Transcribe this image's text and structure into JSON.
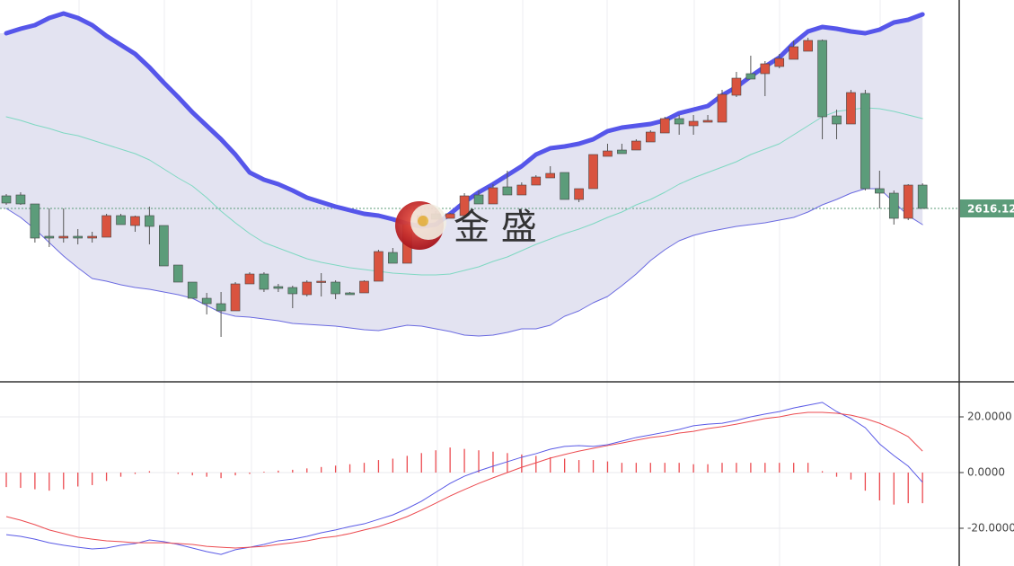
{
  "watermark": "金 盛",
  "chart_data": [
    {
      "type": "candlestick",
      "ylim": [
        2567.87,
        2674.12
      ],
      "up_color": "#d9533f",
      "down_color": "#5c9c7a",
      "band_fill": "#e3e3f1",
      "last_price": 2616.12,
      "last_price_color": "#5c9c7a",
      "open": [
        2619.62,
        2619.87,
        2617.37,
        2608.37,
        2607.87,
        2608.37,
        2607.87,
        2608.12,
        2614.12,
        2611.37,
        2614.12,
        2611.37,
        2600.37,
        2595.62,
        2591.12,
        2589.62,
        2587.62,
        2595.12,
        2597.87,
        2594.37,
        2594.12,
        2592.12,
        2595.62,
        2595.62,
        2592.62,
        2592.62,
        2595.87,
        2603.87,
        2600.87,
        2611.62,
        2614.62,
        2613.37,
        2614.12,
        2619.87,
        2617.37,
        2622.12,
        2619.87,
        2622.62,
        2624.62,
        2626.12,
        2618.62,
        2621.62,
        2630.62,
        2632.37,
        2632.37,
        2634.62,
        2637.12,
        2641.12,
        2639.12,
        2640.12,
        2640.12,
        2647.62,
        2653.62,
        2653.62,
        2655.62,
        2657.62,
        2659.87,
        2662.87,
        2641.87,
        2639.62,
        2648.12,
        2621.62,
        2620.37,
        2613.37,
        2622.62
      ],
      "high": [
        2620.12,
        2620.62,
        2617.37,
        2616.12,
        2616.12,
        2610.37,
        2609.62,
        2614.62,
        2614.62,
        2614.12,
        2616.62,
        2611.37,
        2600.37,
        2595.62,
        2592.62,
        2592.87,
        2595.62,
        2598.37,
        2598.37,
        2595.12,
        2594.62,
        2596.12,
        2598.12,
        2596.12,
        2592.87,
        2596.12,
        2604.62,
        2605.12,
        2612.12,
        2614.87,
        2615.37,
        2614.87,
        2620.37,
        2621.12,
        2622.87,
        2626.62,
        2623.37,
        2625.37,
        2627.87,
        2626.12,
        2621.62,
        2631.12,
        2634.12,
        2634.12,
        2635.37,
        2637.87,
        2641.62,
        2642.12,
        2642.12,
        2642.12,
        2649.12,
        2654.12,
        2658.62,
        2657.12,
        2659.12,
        2662.87,
        2663.62,
        2663.12,
        2643.62,
        2649.12,
        2649.12,
        2626.62,
        2621.12,
        2622.87,
        2623.12
      ],
      "low": [
        2617.12,
        2617.12,
        2606.62,
        2605.37,
        2606.62,
        2606.12,
        2606.62,
        2608.12,
        2611.62,
        2609.62,
        2606.12,
        2600.12,
        2595.62,
        2591.12,
        2586.62,
        2580.37,
        2587.62,
        2595.12,
        2592.87,
        2592.87,
        2588.37,
        2591.62,
        2591.62,
        2590.87,
        2592.12,
        2592.62,
        2595.87,
        2600.87,
        2600.87,
        2611.62,
        2613.12,
        2613.37,
        2614.12,
        2617.37,
        2617.37,
        2619.87,
        2619.87,
        2622.62,
        2624.62,
        2618.62,
        2617.87,
        2621.62,
        2630.62,
        2631.37,
        2632.37,
        2634.62,
        2637.12,
        2636.62,
        2636.62,
        2640.12,
        2640.12,
        2647.12,
        2652.12,
        2647.37,
        2655.12,
        2657.62,
        2659.87,
        2635.37,
        2635.37,
        2639.62,
        2621.12,
        2616.12,
        2611.62,
        2612.87,
        2616.12
      ],
      "close": [
        2617.62,
        2617.37,
        2607.87,
        2607.87,
        2608.37,
        2607.87,
        2608.37,
        2614.12,
        2611.62,
        2613.87,
        2611.12,
        2600.12,
        2595.62,
        2591.12,
        2589.62,
        2587.62,
        2595.12,
        2597.87,
        2593.62,
        2593.87,
        2592.37,
        2595.62,
        2595.87,
        2592.37,
        2592.12,
        2595.87,
        2604.12,
        2600.87,
        2611.62,
        2614.12,
        2613.12,
        2614.62,
        2619.62,
        2617.37,
        2621.87,
        2619.87,
        2622.62,
        2624.87,
        2625.87,
        2618.62,
        2621.62,
        2631.12,
        2632.12,
        2631.37,
        2634.87,
        2637.37,
        2641.12,
        2639.62,
        2640.37,
        2640.62,
        2647.87,
        2652.37,
        2652.12,
        2656.37,
        2657.87,
        2661.12,
        2662.87,
        2641.62,
        2639.62,
        2648.37,
        2621.62,
        2620.37,
        2613.37,
        2622.62,
        2616.12
      ],
      "overlays": [
        {
          "color": "#5656ea",
          "width": 5,
          "values": [
            2664.87,
            2666.12,
            2667.12,
            2669.12,
            2670.37,
            2669.12,
            2667.12,
            2664.12,
            2661.62,
            2659.12,
            2655.37,
            2651.12,
            2647.12,
            2642.87,
            2639.12,
            2635.37,
            2631.12,
            2626.12,
            2624.12,
            2622.87,
            2621.12,
            2619.12,
            2617.87,
            2616.62,
            2615.62,
            2614.62,
            2614.12,
            2613.12,
            2611.87,
            2611.12,
            2611.62,
            2614.62,
            2617.87,
            2620.62,
            2622.87,
            2625.37,
            2627.87,
            2631.12,
            2632.87,
            2633.37,
            2634.12,
            2635.37,
            2637.62,
            2638.62,
            2639.12,
            2639.62,
            2640.62,
            2642.62,
            2643.62,
            2644.62,
            2647.62,
            2649.87,
            2652.87,
            2655.62,
            2658.12,
            2662.12,
            2665.37,
            2666.62,
            2666.12,
            2665.37,
            2664.87,
            2665.87,
            2667.87,
            2668.62,
            2670.12
          ]
        },
        {
          "color": "#7fd8c2",
          "width": 1,
          "values": [
            2641.62,
            2640.62,
            2639.37,
            2638.37,
            2637.12,
            2636.37,
            2635.12,
            2633.87,
            2632.62,
            2631.37,
            2629.62,
            2627.12,
            2624.62,
            2622.37,
            2619.12,
            2615.37,
            2612.12,
            2609.12,
            2606.62,
            2605.12,
            2603.62,
            2602.12,
            2601.12,
            2600.37,
            2599.62,
            2599.12,
            2598.62,
            2598.12,
            2597.87,
            2597.62,
            2597.62,
            2597.87,
            2598.87,
            2599.87,
            2601.37,
            2602.62,
            2604.37,
            2606.12,
            2607.62,
            2609.12,
            2610.37,
            2611.87,
            2613.62,
            2615.12,
            2617.12,
            2618.62,
            2620.62,
            2622.87,
            2624.62,
            2626.12,
            2627.62,
            2629.12,
            2631.12,
            2632.62,
            2634.12,
            2636.62,
            2639.12,
            2641.62,
            2643.12,
            2643.62,
            2644.12,
            2643.87,
            2643.12,
            2642.12,
            2641.12
          ]
        },
        {
          "color": "#6a6ae0",
          "width": 1,
          "values": [
            2616.12,
            2613.62,
            2610.37,
            2606.62,
            2602.87,
            2599.62,
            2596.62,
            2595.87,
            2594.87,
            2594.12,
            2593.62,
            2592.87,
            2592.12,
            2591.12,
            2589.12,
            2587.12,
            2586.12,
            2585.87,
            2585.37,
            2584.87,
            2584.12,
            2583.87,
            2583.62,
            2583.37,
            2582.87,
            2582.37,
            2582.12,
            2582.87,
            2583.62,
            2583.37,
            2582.62,
            2581.87,
            2580.87,
            2580.62,
            2580.87,
            2581.62,
            2582.62,
            2582.62,
            2583.62,
            2586.12,
            2587.62,
            2589.87,
            2591.62,
            2594.62,
            2597.87,
            2601.62,
            2604.62,
            2607.12,
            2608.62,
            2609.62,
            2610.37,
            2611.12,
            2611.62,
            2612.12,
            2612.87,
            2613.62,
            2615.12,
            2617.12,
            2618.62,
            2620.37,
            2621.62,
            2621.62,
            2617.87,
            2614.12,
            2611.62
          ]
        }
      ]
    },
    {
      "type": "macd",
      "ylim": [
        -33.55,
        31.94
      ],
      "yticks": [
        {
          "value": 20,
          "label": "20.0000"
        },
        {
          "value": 0,
          "label": "0.0000"
        },
        {
          "value": -20,
          "label": "-20.0000"
        }
      ],
      "grid": true,
      "histogram": {
        "color": "#ec4b50",
        "values": [
          -5.2,
          -5.5,
          -6,
          -6.5,
          -6,
          -5,
          -4.5,
          -3,
          -1.5,
          -0.5,
          0.5,
          0,
          -0.5,
          -1,
          -1.5,
          -2,
          -1,
          -0.5,
          0.3,
          0.7,
          1,
          1.5,
          2,
          2.5,
          3,
          3.5,
          4.5,
          5,
          6,
          7,
          8,
          9,
          8.5,
          8,
          7.5,
          7,
          6.5,
          6,
          5.5,
          5,
          4.5,
          4.5,
          4,
          3.5,
          3.5,
          3.5,
          3.5,
          3.5,
          3,
          3,
          3.5,
          3.5,
          3.5,
          3.5,
          3.5,
          3.5,
          3.5,
          0.5,
          -1.5,
          -2.5,
          -6.5,
          -10,
          -11.5,
          -11,
          -11
        ]
      },
      "lines": [
        {
          "color": "#5a5ae6",
          "values": [
            -22.3,
            -22.9,
            -23.9,
            -25.2,
            -26.1,
            -26.8,
            -27.4,
            -27.1,
            -26.1,
            -25.5,
            -24.2,
            -24.8,
            -25.8,
            -27.1,
            -28.4,
            -29.4,
            -27.7,
            -26.8,
            -25.8,
            -24.5,
            -23.9,
            -22.9,
            -21.6,
            -20.6,
            -19.4,
            -18.4,
            -16.8,
            -15.2,
            -12.9,
            -10.3,
            -7.1,
            -3.9,
            -1.3,
            0.6,
            2.3,
            3.9,
            5.5,
            6.8,
            8.4,
            9.4,
            9.7,
            9.4,
            10,
            11.3,
            12.6,
            13.5,
            14.5,
            15.5,
            16.8,
            17.4,
            17.7,
            18.7,
            20,
            21,
            21.9,
            23.2,
            24.2,
            25.2,
            21.9,
            19.4,
            16.1,
            10.3,
            6.1,
            2.3,
            -3.5
          ]
        },
        {
          "color": "#ec4b50",
          "values": [
            -15.8,
            -17.1,
            -18.7,
            -20.6,
            -21.9,
            -23.2,
            -23.9,
            -24.5,
            -24.8,
            -25.2,
            -25.2,
            -25.2,
            -25.5,
            -25.8,
            -26.5,
            -26.8,
            -27.1,
            -26.8,
            -26.5,
            -25.8,
            -25.2,
            -24.5,
            -23.5,
            -22.9,
            -21.9,
            -20.6,
            -19.4,
            -17.7,
            -15.8,
            -13.5,
            -11,
            -8.4,
            -6.1,
            -3.9,
            -1.9,
            0,
            1.9,
            3.5,
            5.2,
            6.5,
            7.7,
            8.7,
            9.7,
            10.6,
            11.6,
            12.6,
            13.2,
            14.2,
            14.8,
            15.8,
            16.5,
            17.4,
            18.4,
            19.4,
            20,
            21,
            21.6,
            21.6,
            21.3,
            20.6,
            19.4,
            17.7,
            15.5,
            12.9,
            7.7
          ]
        }
      ]
    }
  ]
}
